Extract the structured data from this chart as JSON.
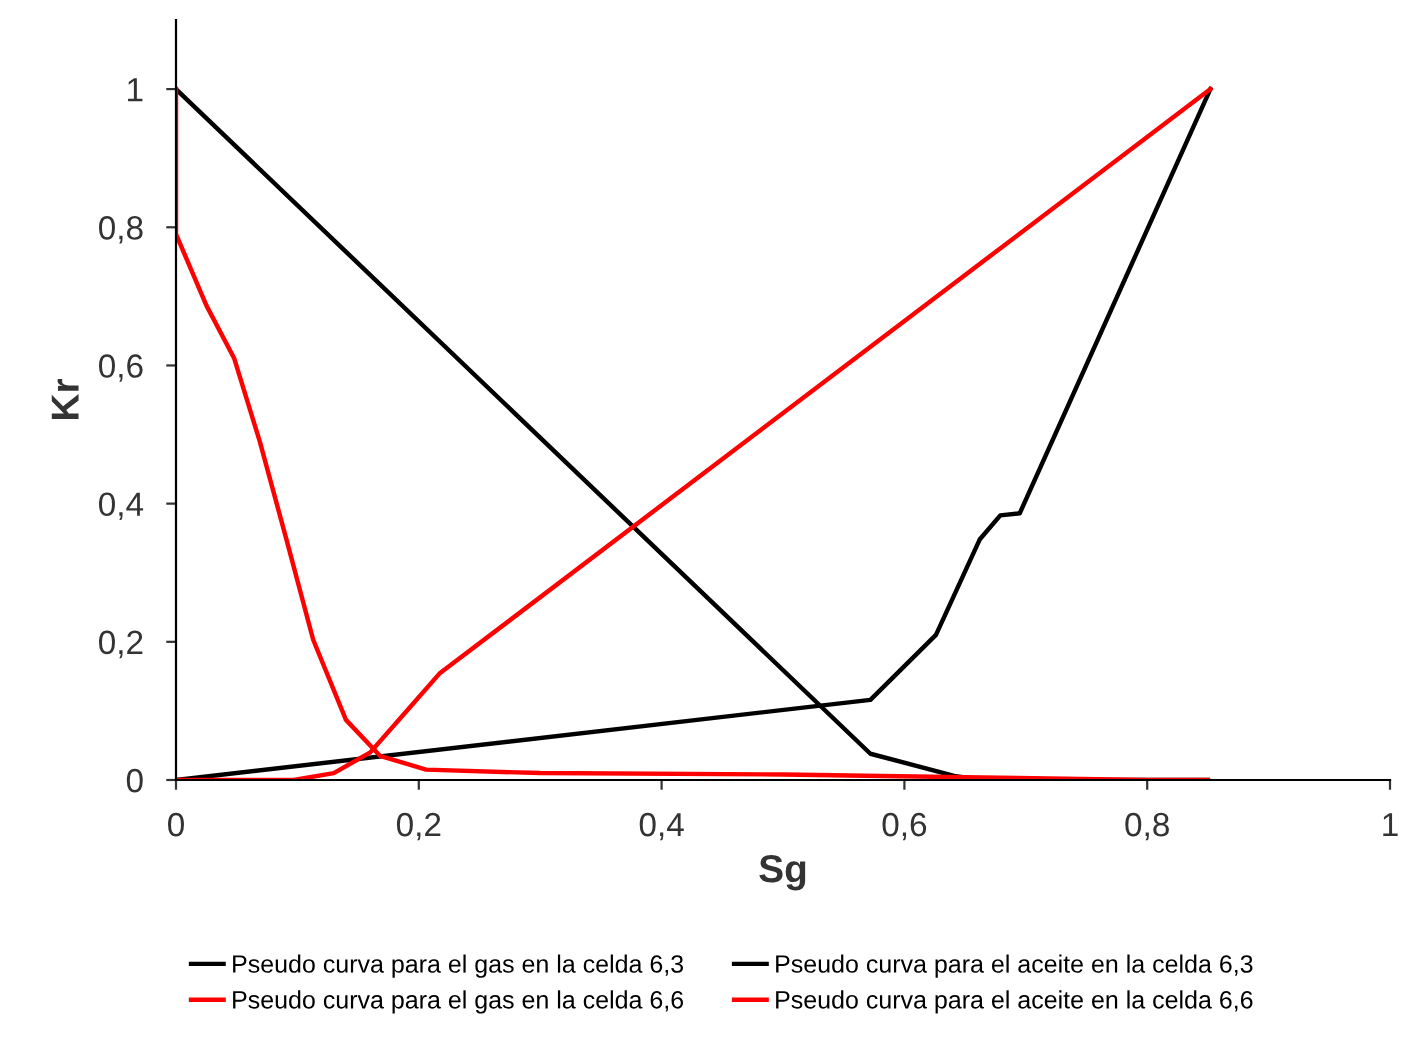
{
  "chart_data": {
    "type": "line",
    "xlabel": "Sg",
    "ylabel": "Kr",
    "xlim": [
      0,
      1
    ],
    "ylim": [
      0,
      1.1
    ],
    "xticks": [
      0,
      {
        "value": 0.2,
        "label": "0,2"
      },
      {
        "value": 0.4,
        "label": "0,4"
      },
      {
        "value": 0.6,
        "label": "0,6"
      },
      {
        "value": 0.8,
        "label": "0,8"
      },
      1
    ],
    "yticks": [
      0,
      {
        "value": 0.2,
        "label": "0,2"
      },
      {
        "value": 0.4,
        "label": "0,4"
      },
      {
        "value": 0.6,
        "label": "0,6"
      },
      {
        "value": 0.8,
        "label": "0,8"
      },
      1
    ],
    "grid": false,
    "legend": "bottom",
    "marker": "none",
    "line_style": "solid",
    "series": [
      {
        "name": "Pseudo curva para el gas en la celda 6,3",
        "color": "#000000",
        "x": [
          0,
          0.572,
          0.626,
          0.662,
          0.679,
          0.695,
          0.852
        ],
        "values": [
          0,
          0.116,
          0.21,
          0.348,
          0.383,
          0.386,
          1
        ]
      },
      {
        "name": "Pseudo curva para el aceite en la celda 6,3",
        "color": "#000000",
        "x": [
          0,
          0.572,
          0.641,
          0.663,
          0.85
        ],
        "values": [
          1,
          0.038,
          0.006,
          0,
          0
        ]
      },
      {
        "name": "Pseudo curva para el gas en la celda 6,6",
        "color": "#ff0000",
        "x": [
          0,
          0.097,
          0.13,
          0.16,
          0.19,
          0.217,
          0.852
        ],
        "values": [
          0,
          0,
          0.01,
          0.04,
          0.1,
          0.154,
          1
        ]
      },
      {
        "name": "Pseudo curva para el aceite en la celda 6,6",
        "color": "#ff0000",
        "x": [
          0,
          0,
          0.025,
          0.048,
          0.069,
          0.091,
          0.113,
          0.14,
          0.168,
          0.206,
          0.3,
          0.5,
          0.65,
          0.8,
          0.85
        ],
        "values": [
          1,
          0.79,
          0.687,
          0.61,
          0.49,
          0.348,
          0.203,
          0.087,
          0.035,
          0.015,
          0.01,
          0.008,
          0.004,
          0,
          0
        ]
      }
    ]
  }
}
